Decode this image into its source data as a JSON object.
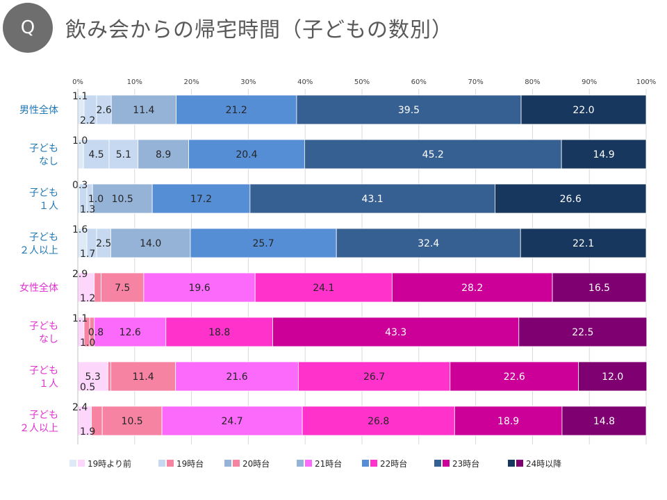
{
  "header": {
    "badge": "Q",
    "title": "飲み会からの帰宅時間（子どもの数別）"
  },
  "colors": {
    "male": [
      "#deebf7",
      "#c6d9f1",
      "#95b3d7",
      "#558ed5",
      "#376092",
      "#17375e"
    ],
    "female": [
      "#fdd7fb",
      "#f783a3",
      "#fb6afb",
      "#ff33cc",
      "#cc0099",
      "#7f0070"
    ],
    "male_label": "#1f77b4",
    "female_label": "#e030d0"
  },
  "chart_data": {
    "type": "bar",
    "orientation": "horizontal",
    "stacked": true,
    "xlim": [
      0,
      100
    ],
    "x_ticks": [
      "0%",
      "10%",
      "20%",
      "30%",
      "40%",
      "50%",
      "60%",
      "70%",
      "80%",
      "90%",
      "100%"
    ],
    "categories": [
      {
        "label": [
          "男性全体"
        ],
        "group": "male"
      },
      {
        "label": [
          "子ども",
          "なし"
        ],
        "group": "male"
      },
      {
        "label": [
          "子ども",
          "１人"
        ],
        "group": "male"
      },
      {
        "label": [
          "子ども",
          "２人以上"
        ],
        "group": "male"
      },
      {
        "label": [
          "女性全体"
        ],
        "group": "female"
      },
      {
        "label": [
          "子ども",
          "なし"
        ],
        "group": "female"
      },
      {
        "label": [
          "子ども",
          "１人"
        ],
        "group": "female"
      },
      {
        "label": [
          "子ども",
          "２人以上"
        ],
        "group": "female"
      }
    ],
    "segments": [
      "19時より前",
      "19時台",
      "20時台",
      "21時台",
      "22時台",
      "23時台",
      "24時以降"
    ],
    "values": [
      [
        1.1,
        2.2,
        2.6,
        11.4,
        21.2,
        39.5,
        22.0
      ],
      [
        1.0,
        4.5,
        5.1,
        8.9,
        20.4,
        45.2,
        14.9
      ],
      [
        0.3,
        1.3,
        1.0,
        10.5,
        17.2,
        43.1,
        26.6
      ],
      [
        1.6,
        1.7,
        2.5,
        14.0,
        25.7,
        32.4,
        22.1
      ],
      [
        2.9,
        1.2,
        7.5,
        19.6,
        24.1,
        28.2,
        16.5
      ],
      [
        1.1,
        1.0,
        0.8,
        12.6,
        18.8,
        43.3,
        22.5
      ],
      [
        5.3,
        0.5,
        11.4,
        21.6,
        26.7,
        22.6,
        12.0
      ],
      [
        2.4,
        1.9,
        10.5,
        24.7,
        26.8,
        18.9,
        14.8
      ]
    ],
    "value_labels": [
      [
        "1.1",
        "2.2",
        "2.6",
        "11.4",
        "21.2",
        "39.5",
        "22.0"
      ],
      [
        "1.0",
        "4.5",
        "5.1",
        "8.9",
        "20.4",
        "45.2",
        "14.9"
      ],
      [
        "0.3",
        "1.3",
        "1.0",
        "10.5",
        "17.2",
        "43.1",
        "26.6"
      ],
      [
        "1.6",
        "1.7",
        "2.5",
        "14.0",
        "25.7",
        "32.4",
        "22.1"
      ],
      [
        "2.9",
        "1.2",
        "7.5",
        "19.6",
        "24.1",
        "28.2",
        "16.5"
      ],
      [
        "1.1",
        "1.0",
        "0.8",
        "12.6",
        "18.8",
        "43.3",
        "22.5"
      ],
      [
        "5.3",
        "0.5",
        "11.4",
        "21.6",
        "26.7",
        "22.6",
        "12.0"
      ],
      [
        "2.4",
        "1.9",
        "10.5",
        "24.7",
        "26.8",
        "18.9",
        "14.8"
      ]
    ],
    "legend": [
      "19時より前",
      "19時台",
      "20時台",
      "21時台",
      "22時台",
      "23時台",
      "24時以降"
    ],
    "legend_position": "bottom",
    "grid": true
  }
}
